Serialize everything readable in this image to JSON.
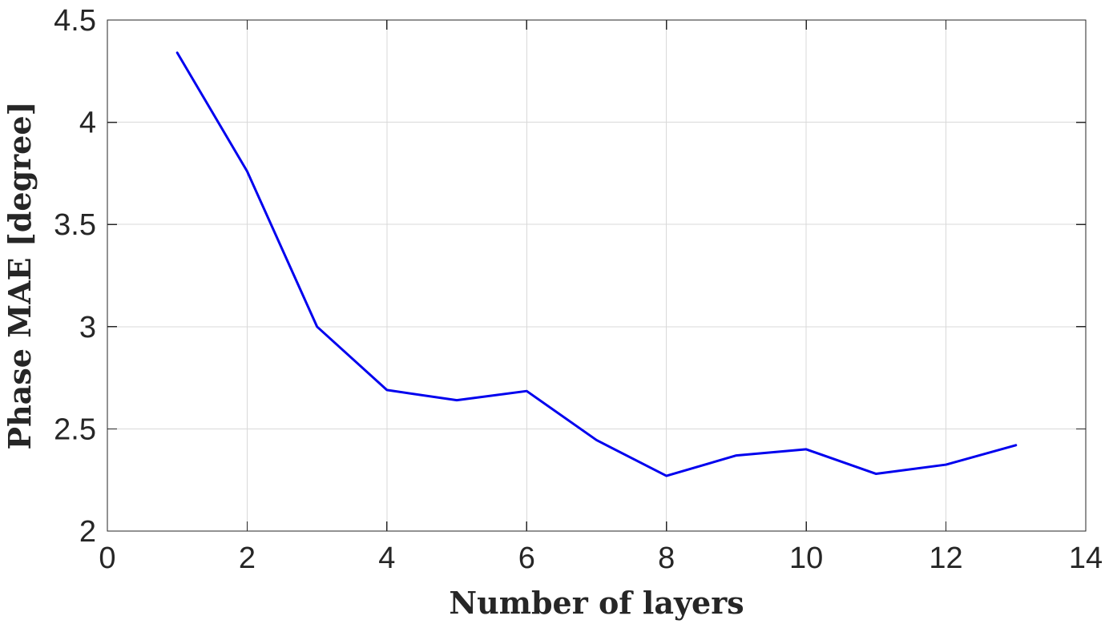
{
  "chart_data": {
    "type": "line",
    "title": "",
    "xlabel": "Number of layers",
    "ylabel": "Phase MAE [degree]",
    "xlim": [
      0,
      14
    ],
    "ylim": [
      2,
      4.5
    ],
    "xticks": [
      0,
      2,
      4,
      6,
      8,
      10,
      12,
      14
    ],
    "yticks": [
      2,
      2.5,
      3,
      3.5,
      4,
      4.5
    ],
    "xtick_labels": [
      "0",
      "2",
      "4",
      "6",
      "8",
      "10",
      "12",
      "14"
    ],
    "ytick_labels": [
      "2",
      "2.5",
      "3",
      "3.5",
      "4",
      "4.5"
    ],
    "grid": true,
    "box": true,
    "series": [
      {
        "color": "#0000ee",
        "x": [
          1,
          2,
          3,
          4,
          5,
          6,
          7,
          8,
          9,
          10,
          11,
          12,
          13
        ],
        "y": [
          4.34,
          3.76,
          3.0,
          2.69,
          2.64,
          2.685,
          2.445,
          2.27,
          2.37,
          2.4,
          2.28,
          2.325,
          2.42
        ]
      }
    ]
  }
}
